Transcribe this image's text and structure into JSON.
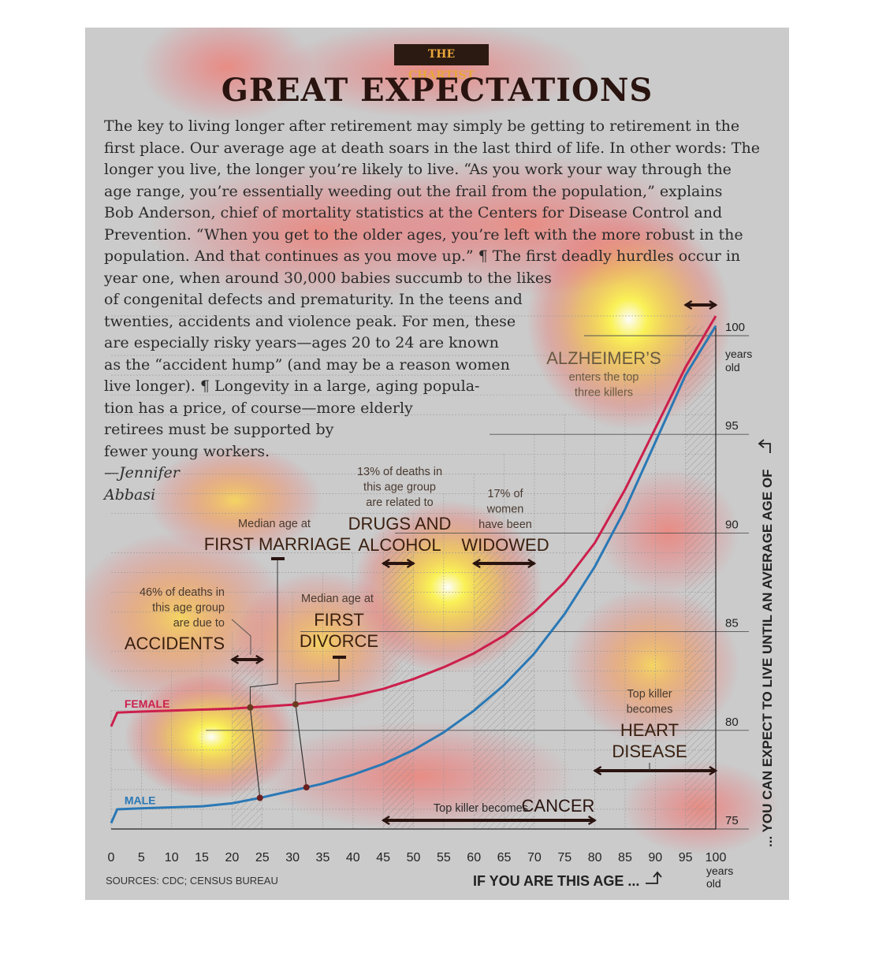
{
  "kicker": "THE CHARTIST",
  "headline": "GREAT EXPECTATIONS",
  "intro_lines": [
    "The key to living longer after retirement may simply be getting to retirement in the",
    "first place. Our average age at death soars in the last third of life. In other words: The",
    "longer you live, the longer you’re likely to live. “As you work your way through the",
    "age range, you’re essentially weeding out the frail from the population,” explains",
    "Bob Anderson, chief of mortality statistics at the Centers for Disease Control and",
    "Prevention. “When you get to the older ages, you’re left with the more robust in the",
    "population. And that continues as you move up.” ¶ The first deadly hurdles occur in",
    "year one, when around 30,000 babies succumb to the likes",
    "of congenital defects and prematurity. In the teens and",
    "twenties, accidents and violence peak. For men, these",
    "are especially risky years—ages 20 to 24 are known",
    "as the “accident hump” (and may be a reason women",
    "live longer). ¶ Longevity in a large, aging popula-",
    "tion has a price, of course—more elderly",
    "retirees must be supported by",
    "fewer young workers."
  ],
  "byline_lines": [
    "—Jennifer",
    "Abbasi"
  ],
  "sources": "SOURCES: CDC; CENSUS BUREAU",
  "chart_data": {
    "type": "line",
    "xlabel": "IF YOU ARE THIS AGE ...",
    "ylabel": "... YOU CAN EXPECT TO LIVE UNTIL AN AVERAGE AGE OF",
    "xlim": [
      0,
      100
    ],
    "ylim": [
      75,
      100
    ],
    "x_ticks": [
      0,
      5,
      10,
      15,
      20,
      25,
      30,
      35,
      40,
      45,
      50,
      55,
      60,
      65,
      70,
      75,
      80,
      85,
      90,
      95,
      100
    ],
    "y_ticks": [
      75,
      80,
      85,
      90,
      95,
      100
    ],
    "x_end_unit": [
      "years",
      "old"
    ],
    "y_end_unit": [
      "years",
      "old"
    ],
    "series": [
      {
        "name": "FEMALE",
        "color": "#cc1f4c",
        "x": [
          0,
          1,
          5,
          10,
          15,
          20,
          25,
          30,
          35,
          40,
          45,
          50,
          55,
          60,
          65,
          70,
          75,
          80,
          85,
          90,
          95,
          100
        ],
        "y": [
          80.2,
          80.9,
          80.95,
          81.0,
          81.05,
          81.1,
          81.2,
          81.3,
          81.5,
          81.75,
          82.1,
          82.6,
          83.2,
          83.9,
          84.8,
          86.0,
          87.5,
          89.5,
          92.2,
          95.3,
          98.4,
          101.0
        ]
      },
      {
        "name": "MALE",
        "color": "#2a78b5",
        "x": [
          0,
          1,
          5,
          10,
          15,
          20,
          25,
          30,
          35,
          40,
          45,
          50,
          55,
          60,
          65,
          70,
          75,
          80,
          85,
          90,
          95,
          100
        ],
        "y": [
          75.3,
          76.0,
          76.05,
          76.1,
          76.15,
          76.3,
          76.6,
          76.95,
          77.3,
          77.75,
          78.3,
          79.0,
          79.9,
          81.0,
          82.3,
          83.9,
          85.9,
          88.3,
          91.2,
          94.6,
          98.0,
          100.5
        ]
      }
    ],
    "annotations": {
      "accidents": {
        "lines": [
          "46% of deaths in",
          "this age group",
          "are due to"
        ],
        "label": "ACCIDENTS",
        "range": [
          20,
          25
        ]
      },
      "first_marriage": {
        "line": "Median age at",
        "label": "FIRST MARRIAGE",
        "female_age": 23,
        "male_age": 24.6
      },
      "first_divorce": {
        "line": "Median age at",
        "label_lines": [
          "FIRST",
          "DIVORCE"
        ],
        "female_age": 30.5,
        "male_age": 32.3
      },
      "drugs_alcohol": {
        "lines": [
          "13% of deaths in",
          "this age group",
          "are related to"
        ],
        "label_lines": [
          "DRUGS AND",
          "ALCOHOL"
        ],
        "range": [
          45,
          50
        ]
      },
      "widowed": {
        "lines": [
          "17% of",
          "women",
          "have been"
        ],
        "label": "WIDOWED",
        "range": [
          60,
          70
        ]
      },
      "alzheimers": {
        "label": "ALZHEIMER’S",
        "lines": [
          "enters the top",
          "three killers"
        ],
        "range": [
          95,
          100
        ]
      },
      "heart_disease": {
        "lines": [
          "Top killer",
          "becomes"
        ],
        "label_lines": [
          "HEART",
          "DISEASE"
        ],
        "range": [
          80,
          100
        ]
      },
      "cancer": {
        "line": "Top killer becomes",
        "label": "CANCER",
        "range": [
          45,
          80
        ]
      }
    },
    "grid": true
  }
}
